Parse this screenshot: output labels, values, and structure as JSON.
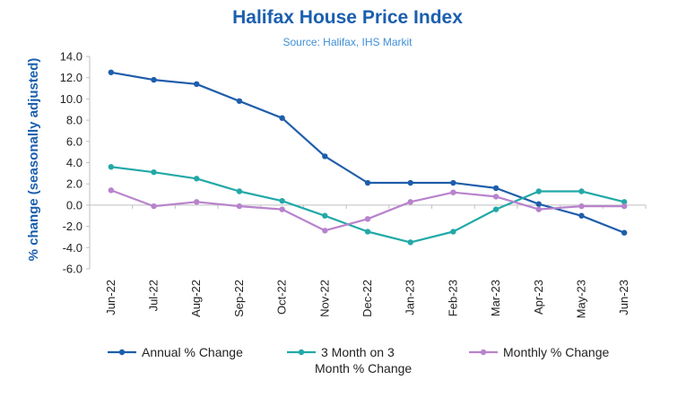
{
  "chart_data": {
    "type": "line",
    "title": "Halifax House Price Index",
    "subtitle": "Source: Halifax, IHS Markit",
    "xlabel": "",
    "ylabel": "% change (seasonally adjusted)",
    "ylim": [
      -6.0,
      14.0
    ],
    "ytick_step": 2.0,
    "grid": false,
    "legend_position": "bottom",
    "categories": [
      "Jun-22",
      "Jul-22",
      "Aug-22",
      "Sep-22",
      "Oct-22",
      "Nov-22",
      "Dec-22",
      "Jan-23",
      "Feb-23",
      "Mar-23",
      "Apr-23",
      "May-23",
      "Jun-23"
    ],
    "series": [
      {
        "name": "Annual % Change",
        "color": "#1f5eab",
        "values": [
          12.5,
          11.8,
          11.4,
          9.8,
          8.2,
          4.6,
          2.1,
          2.1,
          2.1,
          1.6,
          0.1,
          -1.0,
          -2.6
        ]
      },
      {
        "name": "3 Month on 3 Month % Change",
        "color": "#22a9a7",
        "values": [
          3.6,
          3.1,
          2.5,
          1.3,
          0.4,
          -1.0,
          -2.5,
          -3.5,
          -2.5,
          -0.4,
          1.3,
          1.3,
          0.3
        ]
      },
      {
        "name": "Monthly % Change",
        "color": "#b883cc",
        "values": [
          1.4,
          -0.1,
          0.3,
          -0.1,
          -0.4,
          -2.4,
          -1.3,
          0.3,
          1.2,
          0.8,
          -0.4,
          -0.1,
          -0.1
        ]
      }
    ]
  }
}
